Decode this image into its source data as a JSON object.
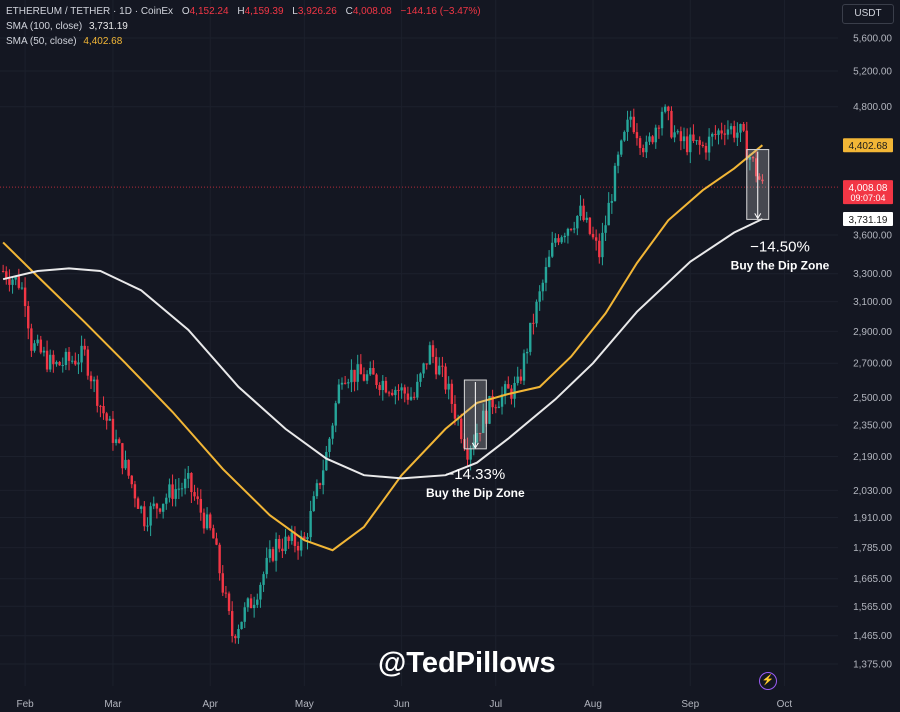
{
  "header": {
    "symbol": "ETHEREUM / TETHER · 1D · CoinEx",
    "o_label": "O",
    "o_value": "4,152.24",
    "h_label": "H",
    "h_value": "4,159.39",
    "l_label": "L",
    "l_value": "3,926.26",
    "c_label": "C",
    "c_value": "4,008.08",
    "change": "−144.16 (−3.47%)",
    "sma100_label": "SMA (100, close)",
    "sma100_value": "3,731.19",
    "sma50_label": "SMA (50, close)",
    "sma50_value": "4,402.68"
  },
  "currency": "USDT",
  "watermark": "@TedPillows",
  "icons": {
    "brand": "bolt-icon"
  },
  "colors": {
    "up": "#26a69a",
    "down": "#f23645",
    "sma50": "#f2b636",
    "sma100": "#e9e9ea",
    "background": "#141722"
  },
  "chart_data": {
    "type": "candlestick",
    "y_scale": "log",
    "ylim": [
      1330,
      6000
    ],
    "y_ticks": [
      {
        "value": 5600,
        "label": "5,600.00"
      },
      {
        "value": 5200,
        "label": "5,200.00"
      },
      {
        "value": 4800,
        "label": "4,800.00"
      },
      {
        "value": 3600,
        "label": "3,600.00"
      },
      {
        "value": 3300,
        "label": "3,300.00"
      },
      {
        "value": 3100,
        "label": "3,100.00"
      },
      {
        "value": 2900,
        "label": "2,900.00"
      },
      {
        "value": 2700,
        "label": "2,700.00"
      },
      {
        "value": 2500,
        "label": "2,500.00"
      },
      {
        "value": 2350,
        "label": "2,350.00"
      },
      {
        "value": 2190,
        "label": "2,190.00"
      },
      {
        "value": 2030,
        "label": "2,030.00"
      },
      {
        "value": 1910,
        "label": "1,910.00"
      },
      {
        "value": 1785,
        "label": "1,785.00"
      },
      {
        "value": 1665,
        "label": "1,665.00"
      },
      {
        "value": 1565,
        "label": "1,565.00"
      },
      {
        "value": 1465,
        "label": "1,465.00"
      },
      {
        "value": 1375,
        "label": "1,375.00"
      }
    ],
    "x_ticks": [
      {
        "date": "2025-02-01",
        "label": "Feb"
      },
      {
        "date": "2025-03-01",
        "label": "Mar"
      },
      {
        "date": "2025-04-01",
        "label": "Apr"
      },
      {
        "date": "2025-05-01",
        "label": "May"
      },
      {
        "date": "2025-06-01",
        "label": "Jun"
      },
      {
        "date": "2025-07-01",
        "label": "Jul"
      },
      {
        "date": "2025-08-01",
        "label": "Aug"
      },
      {
        "date": "2025-09-01",
        "label": "Sep"
      },
      {
        "date": "2025-10-01",
        "label": "Oct"
      }
    ],
    "price_labels": [
      {
        "value": 4402.68,
        "text": "4,402.68",
        "color": "#f2b636",
        "text_color": "#1a1a1a"
      },
      {
        "value": 4008.08,
        "text": "4,008.08",
        "sub": "09:07:04",
        "color": "#f23645",
        "text_color": "#ffffff"
      },
      {
        "value": 3731.19,
        "text": "3,731.19",
        "color": "#ffffff",
        "text_color": "#1a1a1a"
      }
    ],
    "current_price": 4008.08,
    "series": [
      {
        "name": "SMA (50, close)",
        "color": "#f2b636",
        "points": [
          [
            "2025-01-25",
            3540
          ],
          [
            "2025-02-05",
            3280
          ],
          [
            "2025-02-20",
            2960
          ],
          [
            "2025-03-05",
            2700
          ],
          [
            "2025-03-20",
            2420
          ],
          [
            "2025-04-05",
            2130
          ],
          [
            "2025-04-20",
            1920
          ],
          [
            "2025-05-01",
            1815
          ],
          [
            "2025-05-10",
            1775
          ],
          [
            "2025-05-20",
            1870
          ],
          [
            "2025-06-01",
            2100
          ],
          [
            "2025-06-15",
            2330
          ],
          [
            "2025-06-25",
            2470
          ],
          [
            "2025-07-05",
            2520
          ],
          [
            "2025-07-15",
            2560
          ],
          [
            "2025-07-25",
            2740
          ],
          [
            "2025-08-05",
            3020
          ],
          [
            "2025-08-15",
            3380
          ],
          [
            "2025-08-25",
            3720
          ],
          [
            "2025-09-05",
            3980
          ],
          [
            "2025-09-15",
            4180
          ],
          [
            "2025-09-24",
            4402.68
          ]
        ]
      },
      {
        "name": "SMA (100, close)",
        "color": "#e9e9ea",
        "points": [
          [
            "2025-01-25",
            3260
          ],
          [
            "2025-02-05",
            3320
          ],
          [
            "2025-02-15",
            3340
          ],
          [
            "2025-02-25",
            3320
          ],
          [
            "2025-03-10",
            3180
          ],
          [
            "2025-03-25",
            2910
          ],
          [
            "2025-04-10",
            2560
          ],
          [
            "2025-04-25",
            2330
          ],
          [
            "2025-05-08",
            2180
          ],
          [
            "2025-05-20",
            2100
          ],
          [
            "2025-06-01",
            2085
          ],
          [
            "2025-06-15",
            2100
          ],
          [
            "2025-06-25",
            2160
          ],
          [
            "2025-07-05",
            2280
          ],
          [
            "2025-07-20",
            2490
          ],
          [
            "2025-08-01",
            2700
          ],
          [
            "2025-08-15",
            3030
          ],
          [
            "2025-09-01",
            3390
          ],
          [
            "2025-09-15",
            3620
          ],
          [
            "2025-09-24",
            3731.19
          ]
        ]
      }
    ],
    "candle_anchors": [
      [
        "2025-01-25",
        3320
      ],
      [
        "2025-01-30",
        3240
      ],
      [
        "2025-02-01",
        3140
      ],
      [
        "2025-02-03",
        2820
      ],
      [
        "2025-02-10",
        2680
      ],
      [
        "2025-02-20",
        2750
      ],
      [
        "2025-02-25",
        2460
      ],
      [
        "2025-03-03",
        2220
      ],
      [
        "2025-03-11",
        1910
      ],
      [
        "2025-03-20",
        2030
      ],
      [
        "2025-03-25",
        2060
      ],
      [
        "2025-04-02",
        1820
      ],
      [
        "2025-04-08",
        1470
      ],
      [
        "2025-04-15",
        1600
      ],
      [
        "2025-04-22",
        1800
      ],
      [
        "2025-05-01",
        1810
      ],
      [
        "2025-05-08",
        2200
      ],
      [
        "2025-05-13",
        2650
      ],
      [
        "2025-05-25",
        2600
      ],
      [
        "2025-06-05",
        2500
      ],
      [
        "2025-06-10",
        2780
      ],
      [
        "2025-06-15",
        2580
      ],
      [
        "2025-06-22",
        2230
      ],
      [
        "2025-06-30",
        2480
      ],
      [
        "2025-07-08",
        2560
      ],
      [
        "2025-07-13",
        2980
      ],
      [
        "2025-07-20",
        3580
      ],
      [
        "2025-07-28",
        3780
      ],
      [
        "2025-08-03",
        3450
      ],
      [
        "2025-08-09",
        4250
      ],
      [
        "2025-08-13",
        4700
      ],
      [
        "2025-08-18",
        4350
      ],
      [
        "2025-08-23",
        4780
      ],
      [
        "2025-08-28",
        4450
      ],
      [
        "2025-09-05",
        4380
      ],
      [
        "2025-09-12",
        4600
      ],
      [
        "2025-09-17",
        4520
      ],
      [
        "2025-09-22",
        4150
      ],
      [
        "2025-09-24",
        4008.08
      ]
    ],
    "annotations": [
      {
        "text": "−14.33%",
        "sub": "Buy the Dip Zone",
        "from_date": "2025-06-21",
        "to_date": "2025-06-28",
        "from": 2600,
        "to": 2228
      },
      {
        "text": "−14.50%",
        "sub": "Buy the Dip Zone",
        "from_date": "2025-09-19",
        "to_date": "2025-09-26",
        "from": 4360,
        "to": 3728
      }
    ]
  }
}
